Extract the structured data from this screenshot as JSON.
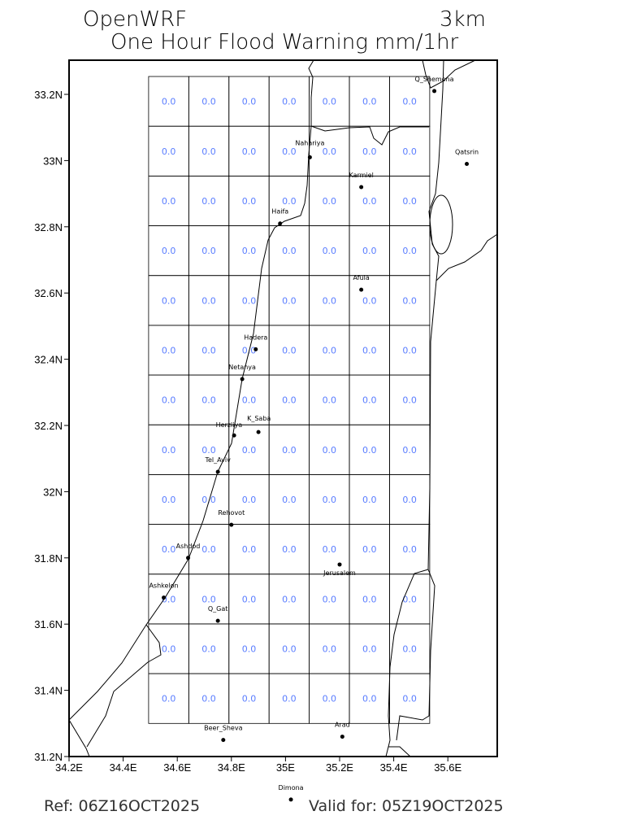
{
  "header": {
    "model": "OpenWRF",
    "resolution": "3km",
    "title": "One Hour Flood Warning mm/1hr"
  },
  "footer": {
    "ref": "Ref: 06Z16OCT2025",
    "valid": "Valid for: 05Z19OCT2025"
  },
  "map": {
    "lon_range": [
      34.2,
      35.78
    ],
    "lat_range": [
      31.2,
      33.3
    ],
    "lat_ticks": [
      {
        "v": 33.2,
        "label": "33.2N"
      },
      {
        "v": 33.0,
        "label": "33N"
      },
      {
        "v": 32.8,
        "label": "32.8N"
      },
      {
        "v": 32.6,
        "label": "32.6N"
      },
      {
        "v": 32.4,
        "label": "32.4N"
      },
      {
        "v": 32.2,
        "label": "32.2N"
      },
      {
        "v": 32.0,
        "label": "32N"
      },
      {
        "v": 31.8,
        "label": "31.8N"
      },
      {
        "v": 31.6,
        "label": "31.6N"
      },
      {
        "v": 31.4,
        "label": "31.4N"
      },
      {
        "v": 31.2,
        "label": "31.2N"
      }
    ],
    "lon_ticks": [
      {
        "v": 34.2,
        "label": "34.2E"
      },
      {
        "v": 34.4,
        "label": "34.4E"
      },
      {
        "v": 34.6,
        "label": "34.6E"
      },
      {
        "v": 34.8,
        "label": "34.8E"
      },
      {
        "v": 35.0,
        "label": "35E"
      },
      {
        "v": 35.2,
        "label": "35.2E"
      },
      {
        "v": 35.4,
        "label": "35.4E"
      },
      {
        "v": 35.6,
        "label": "35.6E"
      }
    ],
    "grid": {
      "lon_min": 34.494,
      "lon_max": 35.533,
      "lat_min": 31.3,
      "lat_max": 33.254,
      "cols": 7,
      "rows": 13,
      "cell_value": "0.0"
    },
    "value_color": "#5a7dff",
    "cities": [
      {
        "name": "Q_Shemona",
        "lon": 35.55,
        "lat": 33.21
      },
      {
        "name": "Qatsrin",
        "lon": 35.67,
        "lat": 32.99
      },
      {
        "name": "Nahariya",
        "lon": 35.09,
        "lat": 33.01
      },
      {
        "name": "Karmiel",
        "lon": 35.28,
        "lat": 32.92
      },
      {
        "name": "Haifa",
        "lon": 34.98,
        "lat": 32.81
      },
      {
        "name": "Afula",
        "lon": 35.28,
        "lat": 32.61
      },
      {
        "name": "Hadera",
        "lon": 34.89,
        "lat": 32.43
      },
      {
        "name": "Netanya",
        "lon": 34.84,
        "lat": 32.34
      },
      {
        "name": "Herzliya",
        "lon": 34.81,
        "lat": 32.17
      },
      {
        "name": "K_Saba",
        "lon": 34.9,
        "lat": 32.18
      },
      {
        "name": "Tel_Aviv",
        "lon": 34.75,
        "lat": 32.06
      },
      {
        "name": "Rehovot",
        "lon": 34.8,
        "lat": 31.9
      },
      {
        "name": "Ashdod",
        "lon": 34.64,
        "lat": 31.8
      },
      {
        "name": "Jerusalem",
        "lon": 35.2,
        "lat": 31.78
      },
      {
        "name": "Ashkelon",
        "lon": 34.55,
        "lat": 31.68
      },
      {
        "name": "Q_Gat",
        "lon": 34.75,
        "lat": 31.61
      },
      {
        "name": "Beer_Sheva",
        "lon": 34.77,
        "lat": 31.25
      },
      {
        "name": "Arad",
        "lon": 35.21,
        "lat": 31.26
      },
      {
        "name": "Dimona",
        "lon": 35.02,
        "lat": 31.07
      }
    ]
  }
}
